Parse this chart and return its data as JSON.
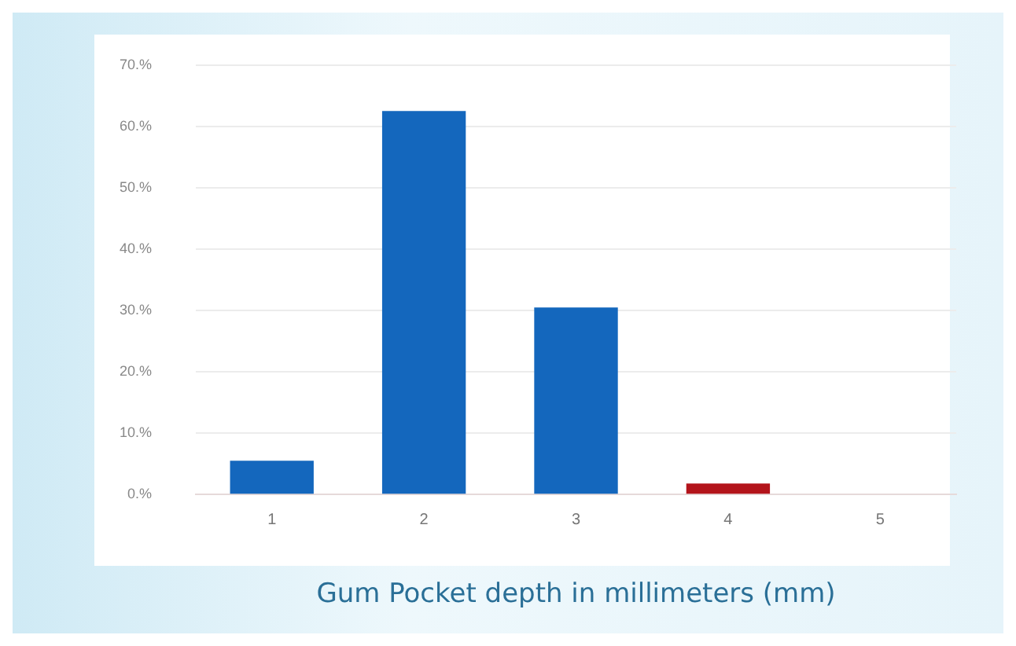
{
  "chart_data": {
    "type": "bar",
    "xlabel": "Gum Pocket depth in millimeters (mm)",
    "categories": [
      "1",
      "2",
      "3",
      "4",
      "5"
    ],
    "values": [
      5.5,
      62.5,
      30.5,
      1.8,
      0
    ],
    "colors": [
      "#1467bd",
      "#1467bd",
      "#1467bd",
      "#b3141b",
      "#1467bd"
    ],
    "ylim": [
      0,
      70
    ],
    "yticks": [
      {
        "value": 0,
        "label": "0.%"
      },
      {
        "value": 10,
        "label": "10.%"
      },
      {
        "value": 20,
        "label": "20.%"
      },
      {
        "value": 30,
        "label": "30.%"
      },
      {
        "value": 40,
        "label": "40.%"
      },
      {
        "value": 50,
        "label": "50.%"
      },
      {
        "value": 60,
        "label": "60.%"
      },
      {
        "value": 70,
        "label": "70.%"
      }
    ],
    "grid": "y",
    "legend": false
  }
}
